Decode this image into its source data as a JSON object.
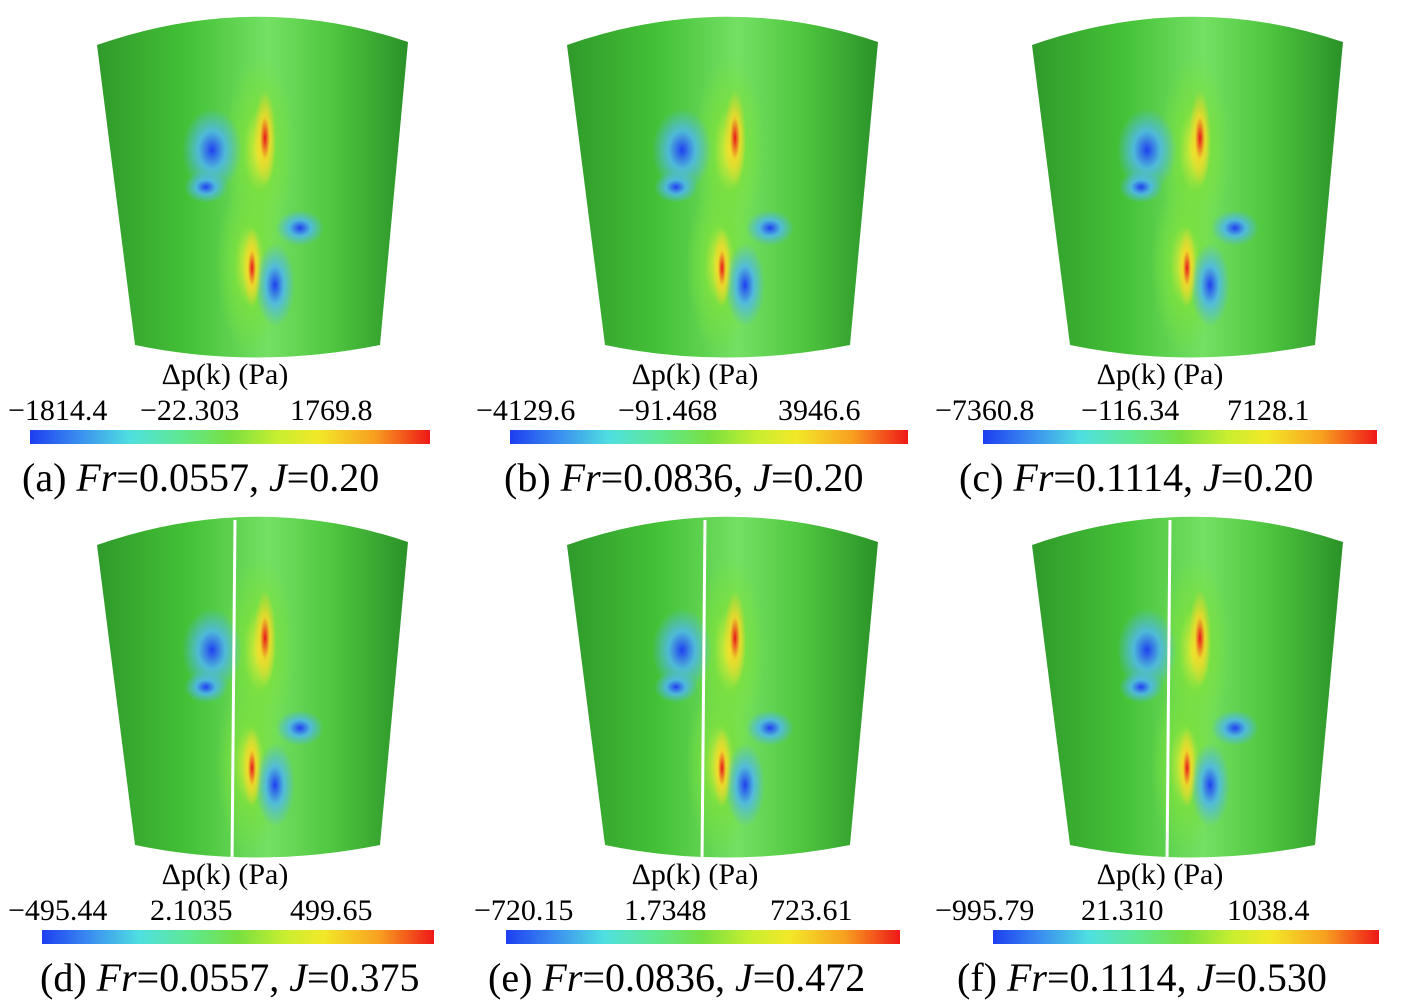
{
  "colormap": [
    "#1d3ef0",
    "#4fe0e0",
    "#78e040",
    "#f2e828",
    "#ee1818"
  ],
  "panels": [
    {
      "cb_title": "Δp(k) (Pa)",
      "ticks": [
        "−1814.4",
        "−22.303",
        "1769.8"
      ],
      "label": "(a)",
      "fr_symbol": "Fr",
      "fr_value": "=0.0557,",
      "j_symbol": "J",
      "j_value": "=0.20"
    },
    {
      "cb_title": "Δp(k) (Pa)",
      "ticks": [
        "−4129.6",
        "−91.468",
        "3946.6"
      ],
      "label": "(b)",
      "fr_symbol": "Fr",
      "fr_value": "=0.0836,",
      "j_symbol": "J",
      "j_value": "=0.20"
    },
    {
      "cb_title": "Δp(k) (Pa)",
      "ticks": [
        "−7360.8",
        "−116.34",
        "7128.1"
      ],
      "label": "(c)",
      "fr_symbol": "Fr",
      "fr_value": "=0.1114,",
      "j_symbol": "J",
      "j_value": "=0.20"
    },
    {
      "cb_title": "Δp(k) (Pa)",
      "ticks": [
        "−495.44",
        "2.1035",
        "499.65"
      ],
      "label": "(d)",
      "fr_symbol": "Fr",
      "fr_value": "=0.0557,",
      "j_symbol": "J",
      "j_value": "=0.375"
    },
    {
      "cb_title": "Δp(k) (Pa)",
      "ticks": [
        "−720.15",
        "1.7348",
        "723.61"
      ],
      "label": "(e)",
      "fr_symbol": "Fr",
      "fr_value": "=0.0836,",
      "j_symbol": "J",
      "j_value": "=0.472"
    },
    {
      "cb_title": "Δp(k) (Pa)",
      "ticks": [
        "−995.79",
        "21.310",
        "1038.4"
      ],
      "label": "(f)",
      "fr_symbol": "Fr",
      "fr_value": "=0.1114,",
      "j_symbol": "J",
      "j_value": "=0.530"
    }
  ]
}
